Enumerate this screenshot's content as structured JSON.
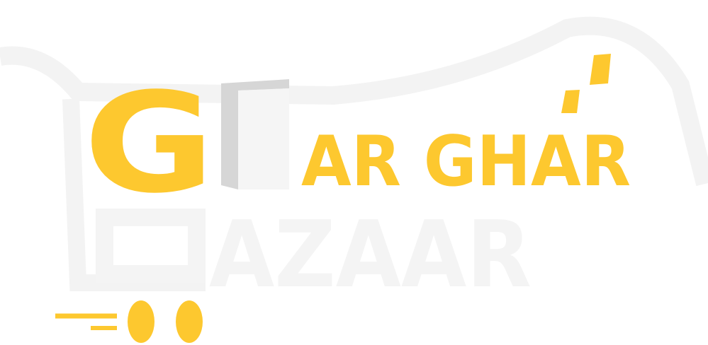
{
  "logo": {
    "first_letter": "G",
    "line1_rest": "AR GHAR",
    "line2_rest": "AZAAR"
  }
}
